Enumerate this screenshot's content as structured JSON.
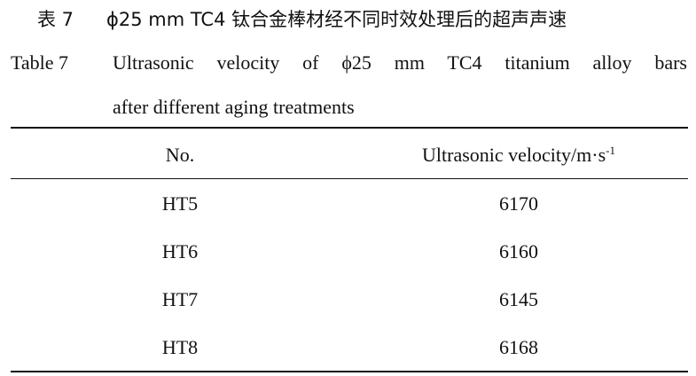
{
  "caption_zh": {
    "label": "表 7",
    "text": "ϕ25 mm TC4 钛合金棒材经不同时效处理后的超声声速"
  },
  "caption_en": {
    "label": "Table 7",
    "lines": [
      "Ultrasonic velocity of ϕ25 mm TC4 titanium alloy bars",
      "after different aging treatments"
    ]
  },
  "table": {
    "columns": [
      {
        "label": "No."
      },
      {
        "label": "Ultrasonic velocity/m·s",
        "superscript": "-1"
      }
    ],
    "rows": [
      [
        "HT5",
        6170
      ],
      [
        "HT6",
        6160
      ],
      [
        "HT7",
        6145
      ],
      [
        "HT8",
        6168
      ]
    ]
  }
}
